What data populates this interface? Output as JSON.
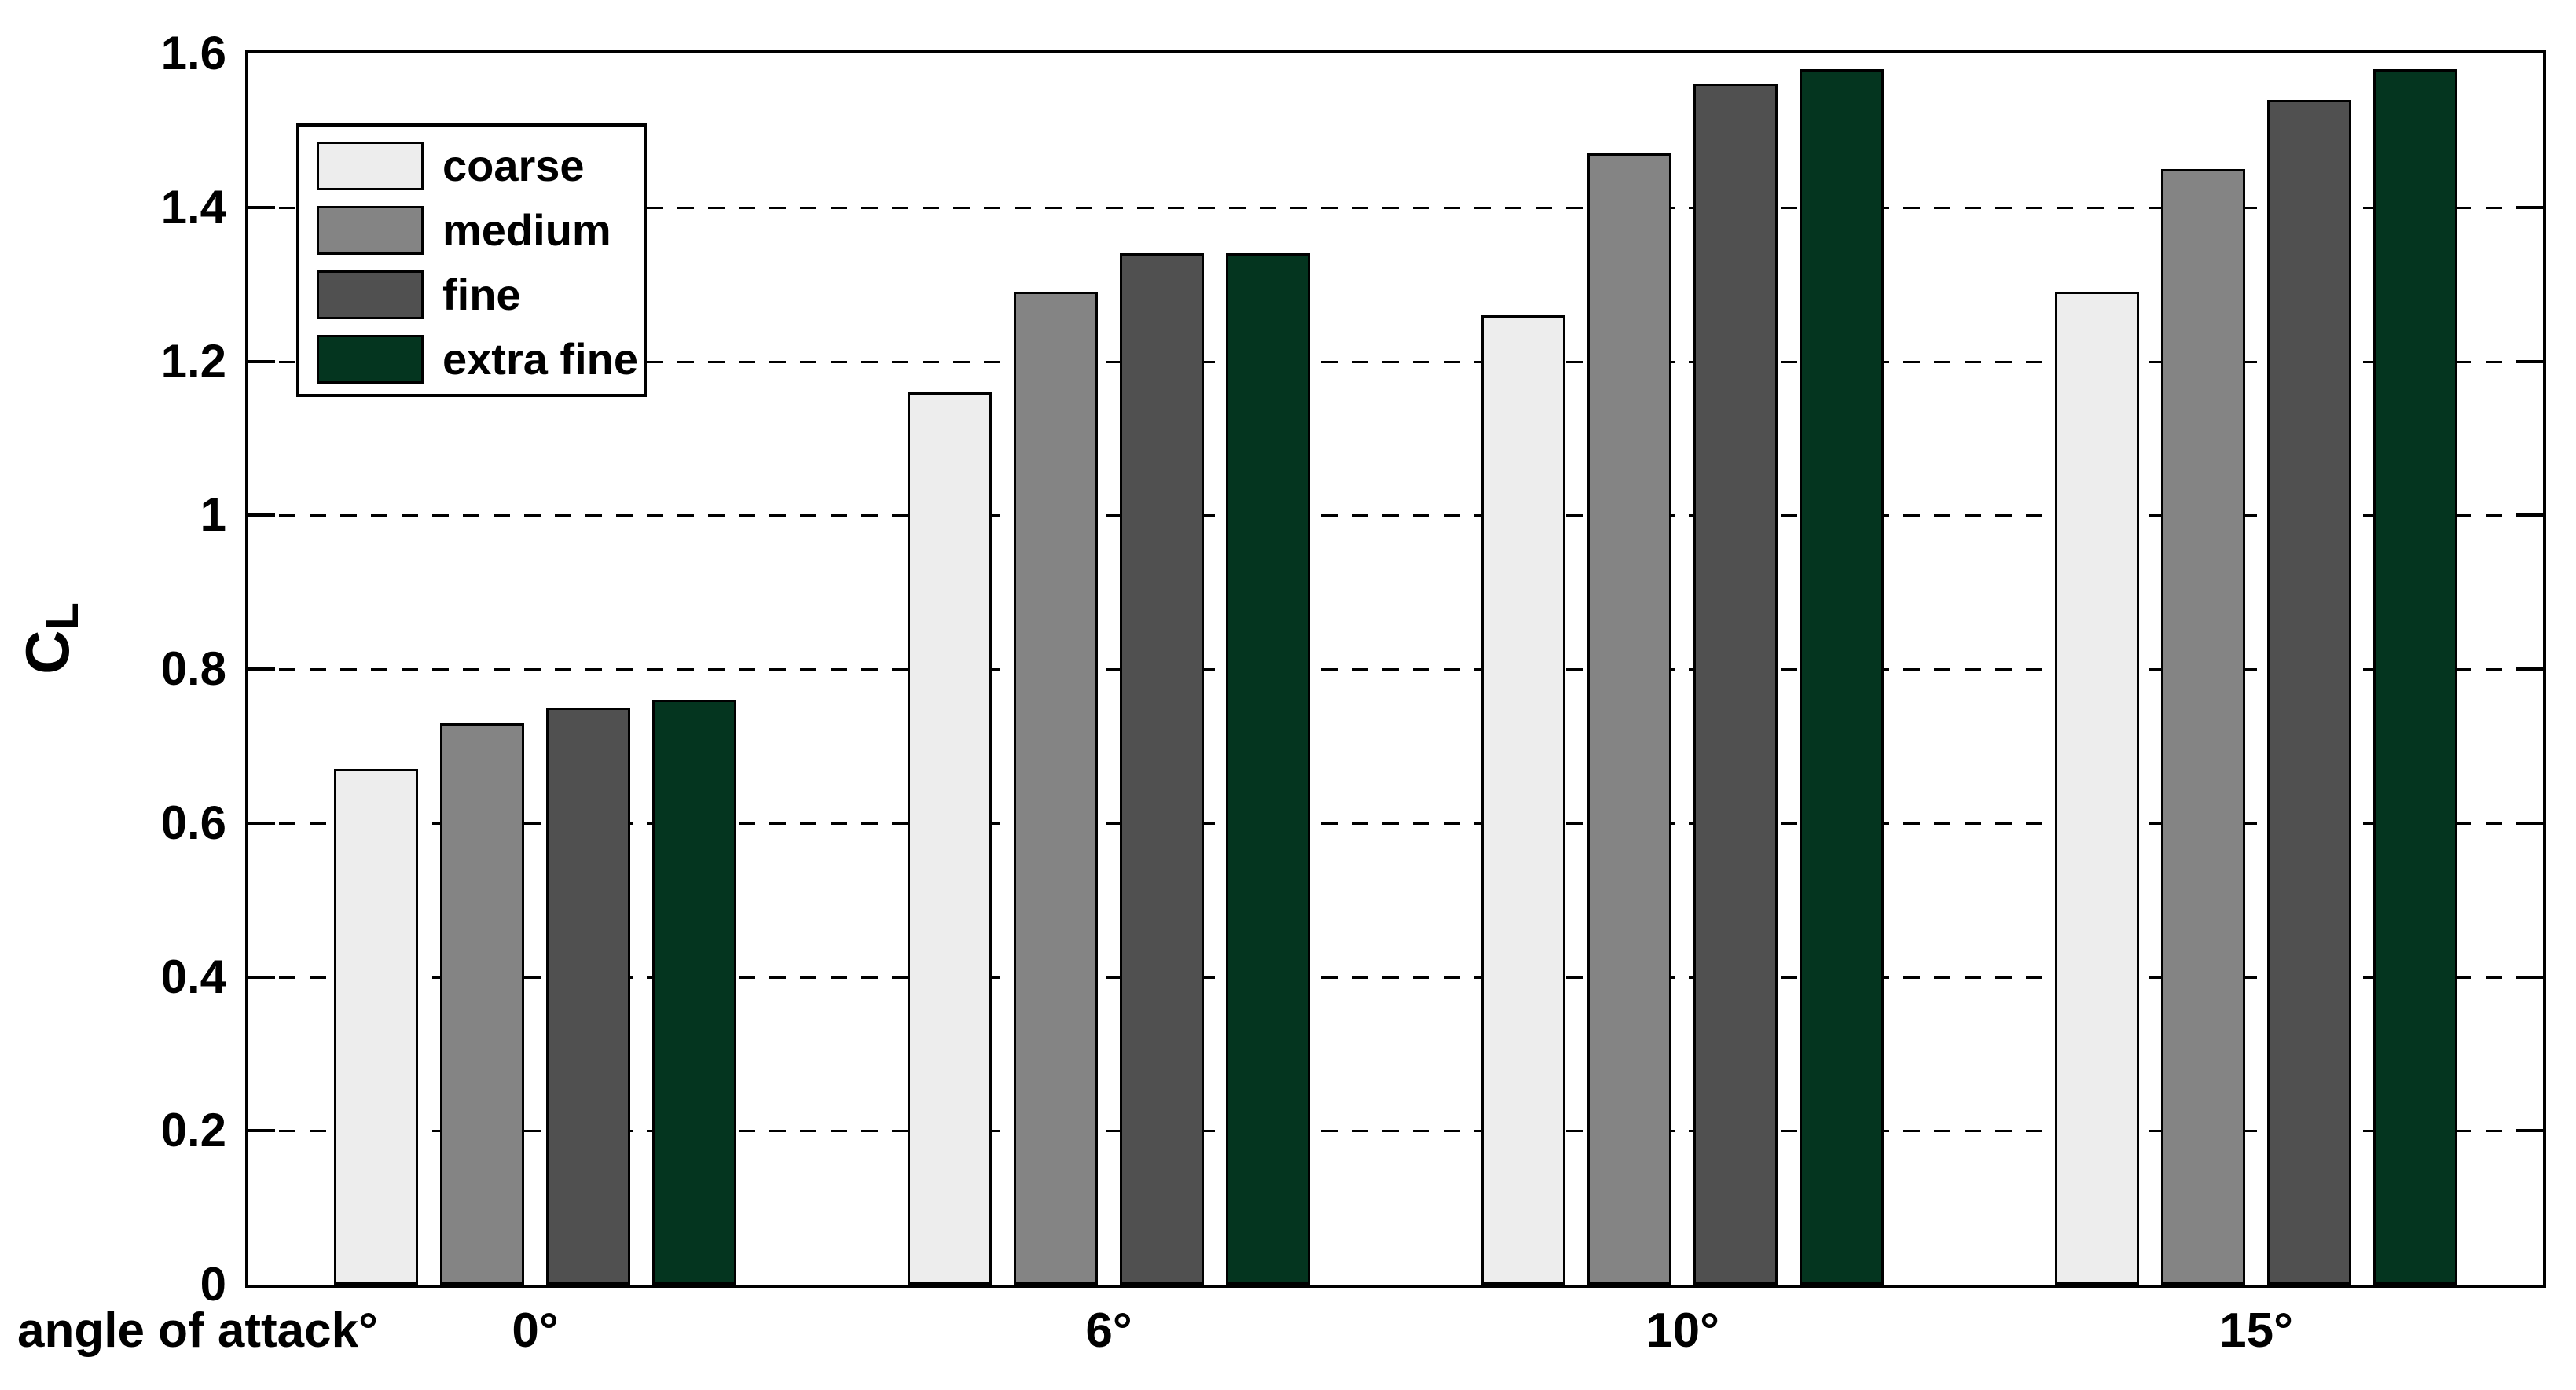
{
  "figure": {
    "background": "#ffffff",
    "axis_color": "#000000",
    "text_color": "#000000"
  },
  "chart_data": {
    "type": "bar",
    "title": "",
    "xlabel": "angle of attack°",
    "ylabel": {
      "main": "C",
      "sub": "L"
    },
    "categories": [
      "0°",
      "6°",
      "10°",
      "15°"
    ],
    "series": [
      {
        "name": "coarse",
        "color": "#ededed",
        "values": [
          0.67,
          1.16,
          1.26,
          1.29
        ]
      },
      {
        "name": "medium",
        "color": "#848484",
        "values": [
          0.73,
          1.29,
          1.47,
          1.45
        ]
      },
      {
        "name": "fine",
        "color": "#505050",
        "values": [
          0.75,
          1.34,
          1.56,
          1.54
        ]
      },
      {
        "name": "extra fine",
        "color": "#04351f",
        "values": [
          0.76,
          1.34,
          1.58,
          1.58
        ]
      }
    ],
    "ylim": [
      0,
      1.6
    ],
    "yticks": [
      "0",
      "0.2",
      "0.4",
      "0.6",
      "0.8",
      "1",
      "1.2",
      "1.4",
      "1.6"
    ],
    "grid": "horizontal-dashed",
    "legend_position": "upper-left-inside",
    "bar_outline_color": "#000000"
  }
}
